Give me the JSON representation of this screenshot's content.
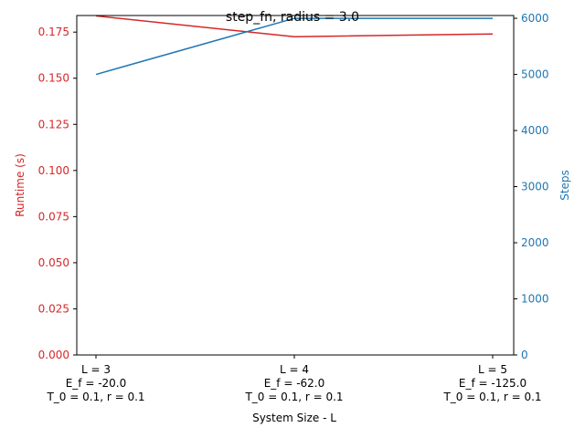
{
  "chart_data": {
    "type": "line",
    "title": "step_fn, radius = 3.0",
    "xlabel": "System Size - L",
    "categories": [
      [
        "L = 3",
        "E_f = -20.0",
        "T_0 = 0.1, r = 0.1"
      ],
      [
        "L = 4",
        "E_f = -62.0",
        "T_0 = 0.1, r = 0.1"
      ],
      [
        "L = 5",
        "E_f = -125.0",
        "T_0 = 0.1, r = 0.1"
      ]
    ],
    "y_left": {
      "label": "Runtime (s)",
      "color": "#d62728",
      "ylim": [
        0,
        0.184
      ],
      "ticks": [
        "0.000",
        "0.025",
        "0.050",
        "0.075",
        "0.100",
        "0.125",
        "0.150",
        "0.175"
      ]
    },
    "y_right": {
      "label": "Steps",
      "color": "#1f77b4",
      "ylim": [
        0,
        6050
      ],
      "ticks": [
        "0",
        "1000",
        "2000",
        "3000",
        "4000",
        "5000",
        "6000"
      ]
    },
    "series": [
      {
        "axis": "left",
        "color": "#d62728",
        "values": [
          0.1838,
          0.1725,
          0.174
        ]
      },
      {
        "axis": "right",
        "color": "#1f77b4",
        "values": [
          5000,
          6000,
          6000
        ]
      }
    ],
    "grid": false
  }
}
